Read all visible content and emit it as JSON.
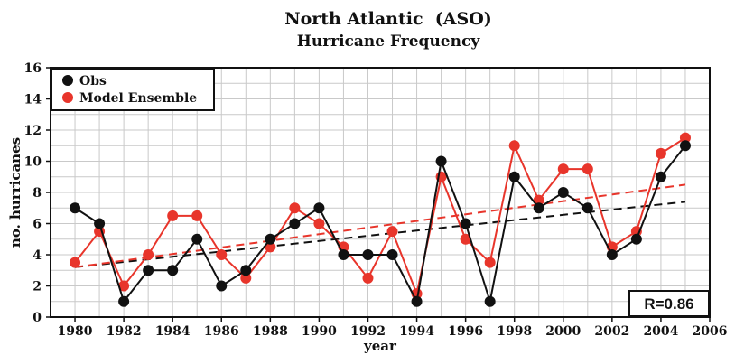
{
  "chart_data": {
    "type": "line",
    "title": "North Atlantic  (ASO)",
    "subtitle": "Hurricane Frequency",
    "xlabel": "year",
    "ylabel": "no. hurricanes",
    "xlim": [
      1979,
      2006
    ],
    "ylim": [
      0,
      16
    ],
    "xticks": [
      1980,
      1982,
      1984,
      1986,
      1988,
      1990,
      1992,
      1994,
      1996,
      1998,
      2000,
      2002,
      2004,
      2006
    ],
    "yticks": [
      0,
      2,
      4,
      6,
      8,
      10,
      12,
      14,
      16
    ],
    "grid": true,
    "legend_position": "top-left",
    "annotation": "R=0.86",
    "x": [
      1980,
      1981,
      1982,
      1983,
      1984,
      1985,
      1986,
      1987,
      1988,
      1989,
      1990,
      1991,
      1992,
      1993,
      1994,
      1995,
      1996,
      1997,
      1998,
      1999,
      2000,
      2001,
      2002,
      2003,
      2004,
      2005
    ],
    "series": [
      {
        "name": "Obs",
        "color": "#111111",
        "values": [
          7,
          6,
          1,
          3,
          3,
          5,
          2,
          3,
          5,
          6,
          7,
          4,
          4,
          4,
          1,
          10,
          6,
          1,
          9,
          7,
          8,
          7,
          4,
          5,
          9,
          11
        ],
        "trend": [
          3.2,
          7.4
        ]
      },
      {
        "name": "Model Ensemble",
        "color": "#e8352b",
        "values": [
          3.5,
          5.5,
          2,
          4,
          6.5,
          6.5,
          4,
          2.5,
          4.5,
          7,
          6,
          4.5,
          2.5,
          5.5,
          1.5,
          9,
          5,
          3.5,
          11,
          7.5,
          9.5,
          9.5,
          4.5,
          5.5,
          10.5,
          11.5
        ],
        "trend": [
          3.2,
          8.5
        ]
      }
    ]
  }
}
